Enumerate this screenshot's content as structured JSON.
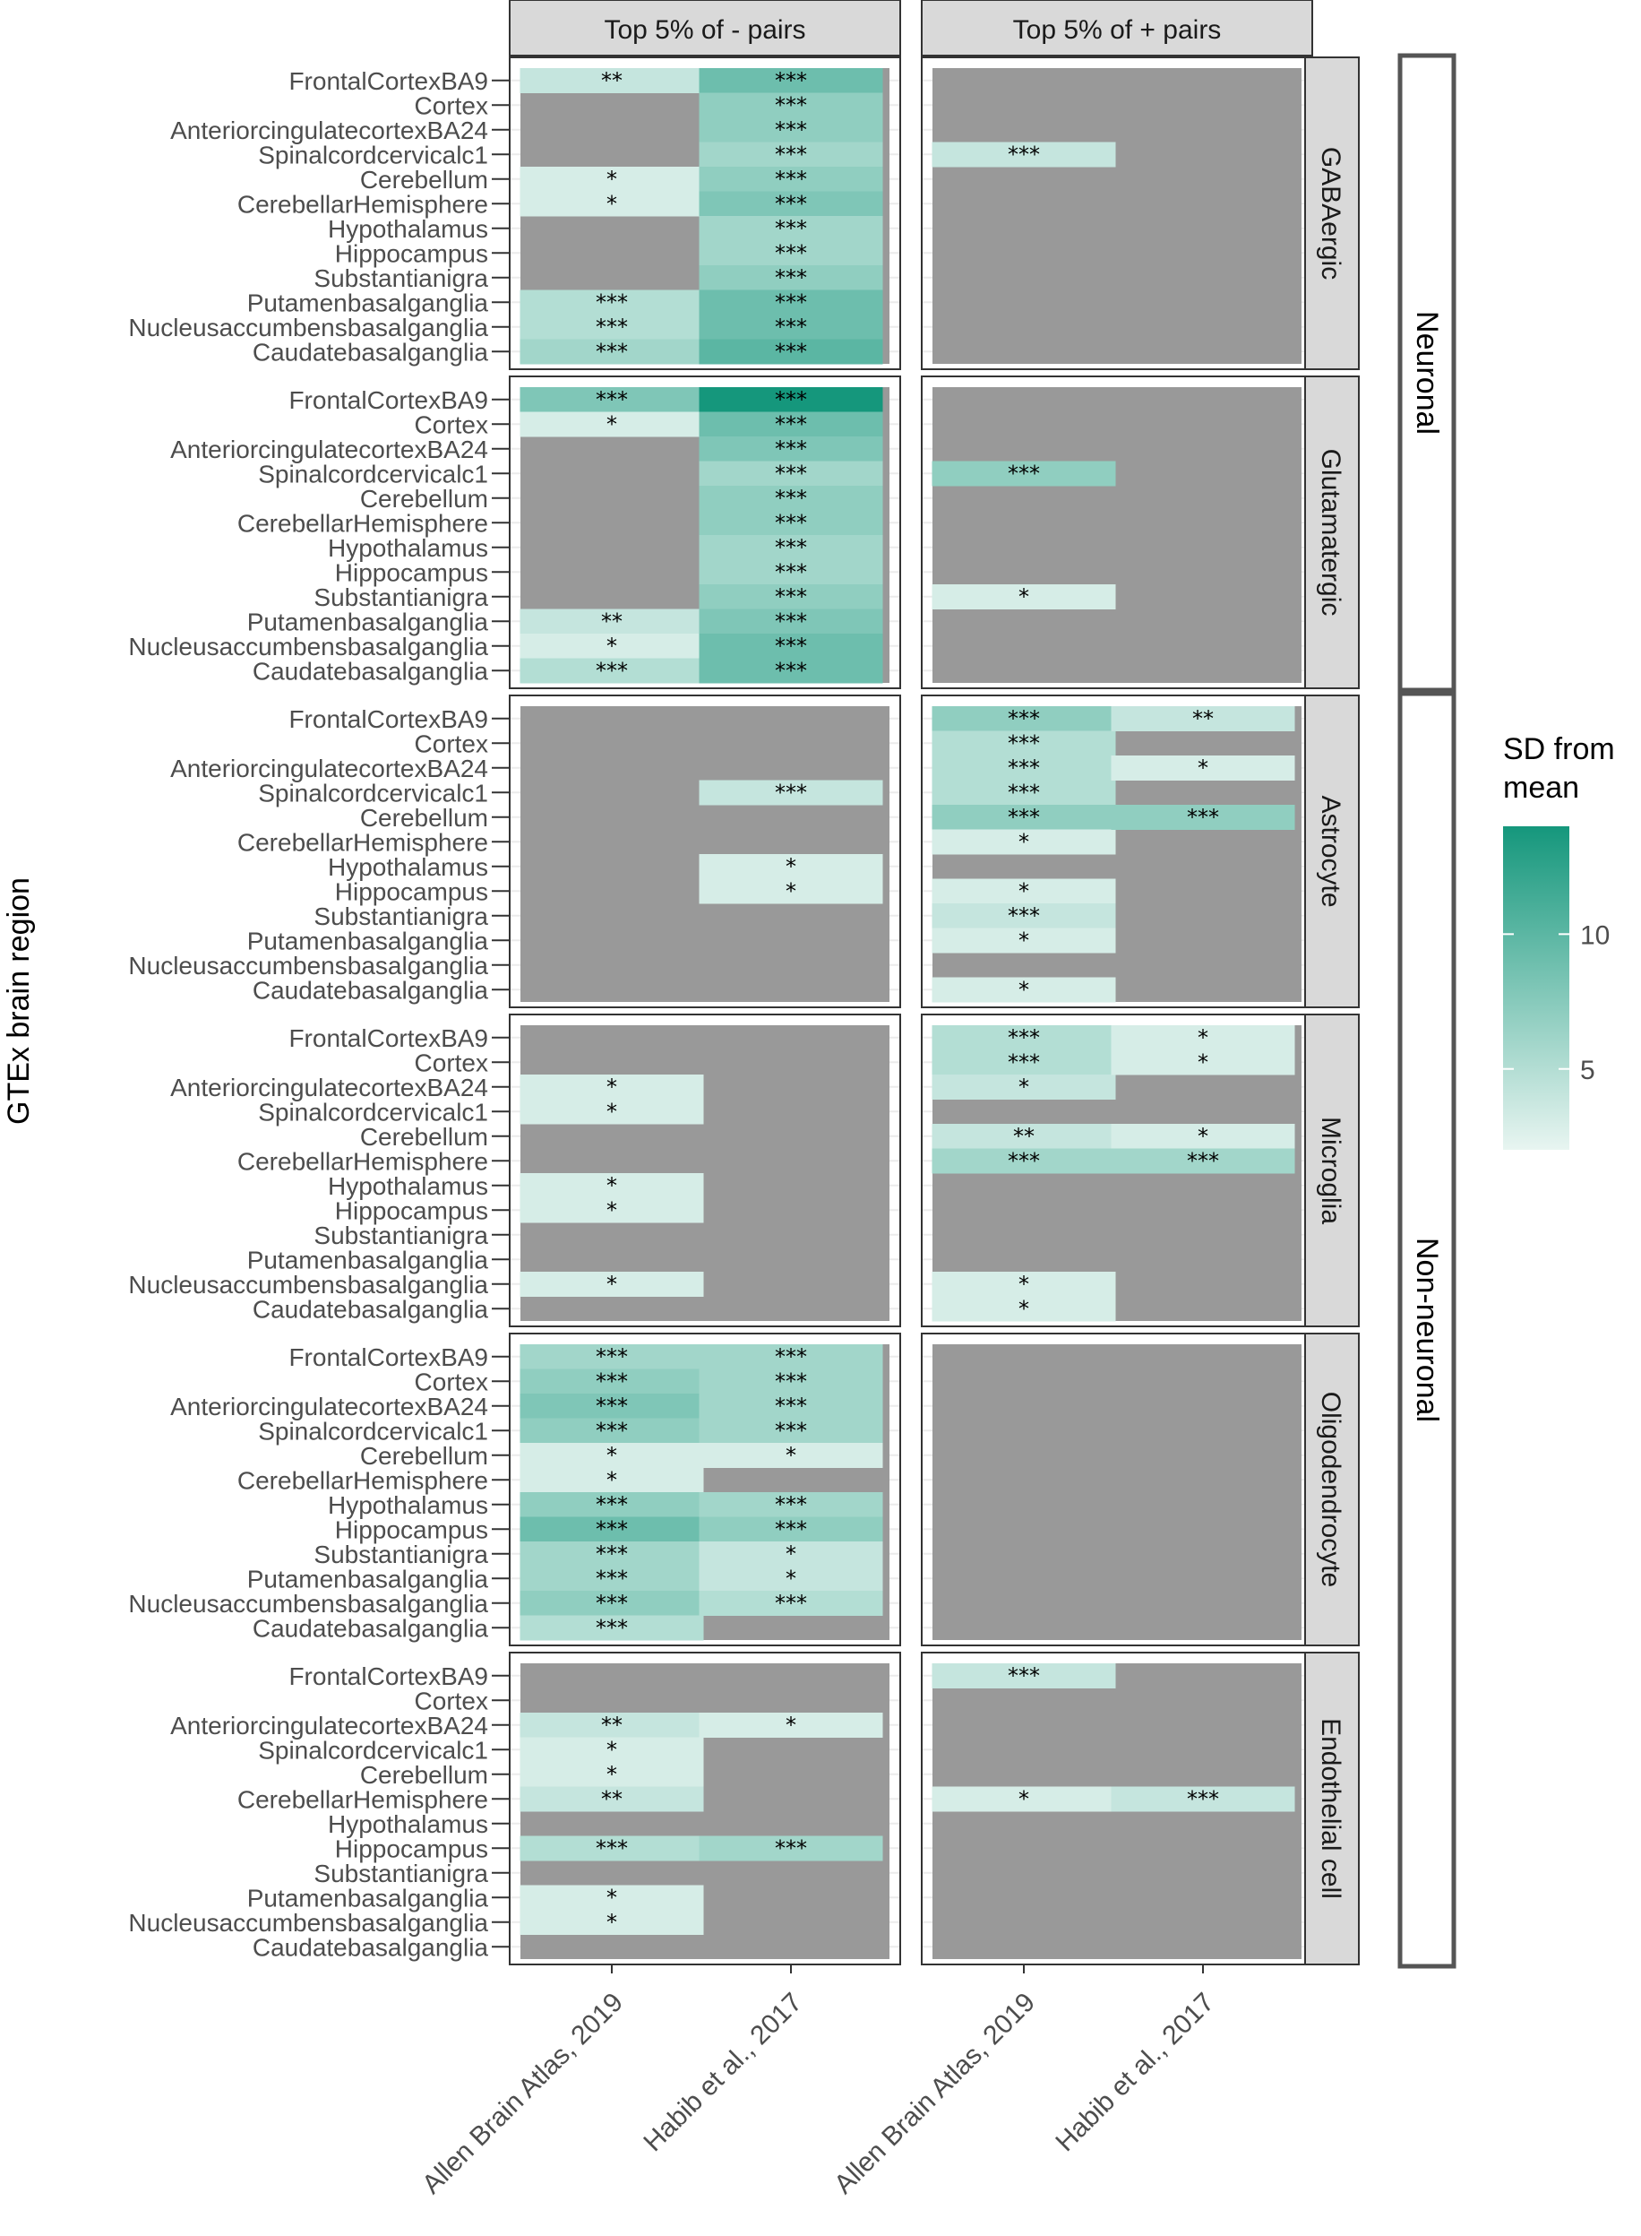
{
  "chart_data": {
    "type": "heatmap",
    "ylabel": "GTEx brain region",
    "xlabel": "",
    "legend": {
      "title_line1": "SD from",
      "title_line2": "mean",
      "position": "right",
      "ticks": [
        5,
        10
      ],
      "min": 2,
      "max": 14,
      "low_color": "#e8f5f1",
      "high_color": "#15977c"
    },
    "colors": {
      "na_tile": "#999999",
      "strip_fill": "#d9d9d9",
      "panel_border": "#333333"
    },
    "column_facets": [
      "Top 5% of - pairs",
      "Top 5% of + pairs"
    ],
    "row_facets": [
      "GABAergic",
      "Glutamatergic",
      "Astrocyte",
      "Microglia",
      "Oligodendrocyte",
      "Endothelial cell"
    ],
    "groups": [
      {
        "label": "Neuronal",
        "facets": [
          "GABAergic",
          "Glutamatergic"
        ]
      },
      {
        "label": "Non-neuronal",
        "facets": [
          "Astrocyte",
          "Microglia",
          "Oligodendrocyte",
          "Endothelial cell"
        ]
      }
    ],
    "x_categories": [
      "Allen Brain Atlas, 2019",
      "Habib et al., 2017"
    ],
    "regions": [
      "FrontalCortexBA9",
      "Cortex",
      "AnteriorcingulatecortexBA24",
      "Spinalcordcervicalc1",
      "Cerebellum",
      "CerebellarHemisphere",
      "Hypothalamus",
      "Hippocampus",
      "Substantianigra",
      "Putamenbasalganglia",
      "Nucleusaccumbensbasalganglia",
      "Caudatebasalganglia"
    ],
    "cells": {
      "GABAergic": {
        "neg": {
          "allen": [
            [
              4,
              "**"
            ],
            null,
            null,
            null,
            [
              3,
              "*"
            ],
            [
              3,
              "*"
            ],
            null,
            null,
            null,
            [
              5,
              "***"
            ],
            [
              5,
              "***"
            ],
            [
              6,
              "***"
            ]
          ],
          "habib": [
            [
              9,
              "***"
            ],
            [
              7,
              "***"
            ],
            [
              7,
              "***"
            ],
            [
              6,
              "***"
            ],
            [
              7,
              "***"
            ],
            [
              8,
              "***"
            ],
            [
              6,
              "***"
            ],
            [
              6,
              "***"
            ],
            [
              7,
              "***"
            ],
            [
              9,
              "***"
            ],
            [
              9,
              "***"
            ],
            [
              10,
              "***"
            ]
          ]
        },
        "pos": {
          "allen": [
            null,
            null,
            null,
            [
              4,
              "***"
            ],
            null,
            null,
            null,
            null,
            null,
            null,
            null,
            null
          ],
          "habib": [
            null,
            null,
            null,
            null,
            null,
            null,
            null,
            null,
            null,
            null,
            null,
            null
          ]
        }
      },
      "Glutamatergic": {
        "neg": {
          "allen": [
            [
              8,
              "***"
            ],
            [
              3,
              "*"
            ],
            null,
            null,
            null,
            null,
            null,
            null,
            null,
            [
              4,
              "**"
            ],
            [
              3,
              "*"
            ],
            [
              5,
              "***"
            ]
          ],
          "habib": [
            [
              14,
              "***"
            ],
            [
              9,
              "***"
            ],
            [
              8,
              "***"
            ],
            [
              6,
              "***"
            ],
            [
              7,
              "***"
            ],
            [
              7,
              "***"
            ],
            [
              6,
              "***"
            ],
            [
              6,
              "***"
            ],
            [
              7,
              "***"
            ],
            [
              8,
              "***"
            ],
            [
              9,
              "***"
            ],
            [
              9,
              "***"
            ]
          ]
        },
        "pos": {
          "allen": [
            null,
            null,
            null,
            [
              7,
              "***"
            ],
            null,
            null,
            null,
            null,
            [
              3,
              "*"
            ],
            null,
            null,
            null
          ],
          "habib": [
            null,
            null,
            null,
            null,
            null,
            null,
            null,
            null,
            null,
            null,
            null,
            null
          ]
        }
      },
      "Astrocyte": {
        "neg": {
          "allen": [
            null,
            null,
            null,
            null,
            null,
            null,
            null,
            null,
            null,
            null,
            null,
            null
          ],
          "habib": [
            null,
            null,
            null,
            [
              4,
              "***"
            ],
            null,
            null,
            [
              3,
              "*"
            ],
            [
              3,
              "*"
            ],
            null,
            null,
            null,
            null
          ]
        },
        "pos": {
          "allen": [
            [
              7,
              "***"
            ],
            [
              5,
              "***"
            ],
            [
              5,
              "***"
            ],
            [
              5,
              "***"
            ],
            [
              7,
              "***"
            ],
            [
              3,
              "*"
            ],
            null,
            [
              3,
              "*"
            ],
            [
              4,
              "***"
            ],
            [
              3,
              "*"
            ],
            null,
            [
              3,
              "*"
            ]
          ],
          "habib": [
            [
              4,
              "**"
            ],
            null,
            [
              3,
              "*"
            ],
            null,
            [
              7,
              "***"
            ],
            null,
            null,
            null,
            null,
            null,
            null,
            null
          ]
        }
      },
      "Microglia": {
        "neg": {
          "allen": [
            null,
            null,
            [
              3,
              "*"
            ],
            [
              3,
              "*"
            ],
            null,
            null,
            [
              3,
              "*"
            ],
            [
              3,
              "*"
            ],
            null,
            null,
            [
              3,
              "*"
            ],
            null
          ],
          "habib": [
            null,
            null,
            null,
            null,
            null,
            null,
            null,
            null,
            null,
            null,
            null,
            null
          ]
        },
        "pos": {
          "allen": [
            [
              5,
              "***"
            ],
            [
              5,
              "***"
            ],
            [
              4,
              "*"
            ],
            null,
            [
              4,
              "**"
            ],
            [
              6,
              "***"
            ],
            null,
            null,
            null,
            null,
            [
              3,
              "*"
            ],
            [
              3,
              "*"
            ]
          ],
          "habib": [
            [
              3,
              "*"
            ],
            [
              3,
              "*"
            ],
            null,
            null,
            [
              3,
              "*"
            ],
            [
              6,
              "***"
            ],
            null,
            null,
            null,
            null,
            null,
            null
          ]
        }
      },
      "Oligodendrocyte": {
        "neg": {
          "allen": [
            [
              6,
              "***"
            ],
            [
              7,
              "***"
            ],
            [
              8,
              "***"
            ],
            [
              7,
              "***"
            ],
            [
              3,
              "*"
            ],
            [
              3,
              "*"
            ],
            [
              7,
              "***"
            ],
            [
              9,
              "***"
            ],
            [
              6,
              "***"
            ],
            [
              6,
              "***"
            ],
            [
              7,
              "***"
            ],
            [
              5,
              "***"
            ]
          ],
          "habib": [
            [
              6,
              "***"
            ],
            [
              6,
              "***"
            ],
            [
              6,
              "***"
            ],
            [
              6,
              "***"
            ],
            [
              3,
              "*"
            ],
            null,
            [
              6,
              "***"
            ],
            [
              7,
              "***"
            ],
            [
              4,
              "*"
            ],
            [
              4,
              "*"
            ],
            [
              5,
              "***"
            ],
            null
          ]
        },
        "pos": {
          "allen": [
            null,
            null,
            null,
            null,
            null,
            null,
            null,
            null,
            null,
            null,
            null,
            null
          ],
          "habib": [
            null,
            null,
            null,
            null,
            null,
            null,
            null,
            null,
            null,
            null,
            null,
            null
          ]
        }
      },
      "Endothelial cell": {
        "neg": {
          "allen": [
            null,
            null,
            [
              4,
              "**"
            ],
            [
              3,
              "*"
            ],
            [
              3,
              "*"
            ],
            [
              4,
              "**"
            ],
            null,
            [
              5,
              "***"
            ],
            null,
            [
              3,
              "*"
            ],
            [
              3,
              "*"
            ],
            null
          ],
          "habib": [
            null,
            null,
            [
              3,
              "*"
            ],
            null,
            null,
            null,
            null,
            [
              6,
              "***"
            ],
            null,
            null,
            null,
            null
          ]
        },
        "pos": {
          "allen": [
            [
              4,
              "***"
            ],
            null,
            null,
            null,
            null,
            [
              3,
              "*"
            ],
            null,
            null,
            null,
            null,
            null,
            null
          ],
          "habib": [
            null,
            null,
            null,
            null,
            null,
            [
              4,
              "***"
            ],
            null,
            null,
            null,
            null,
            null,
            null
          ]
        }
      }
    }
  }
}
